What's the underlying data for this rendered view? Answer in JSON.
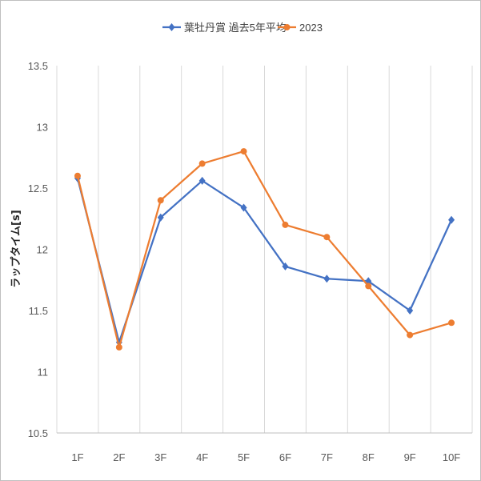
{
  "chart_data": {
    "type": "line",
    "title": "",
    "xlabel": "",
    "ylabel": "ラップタイム[s]",
    "ylim": [
      10.5,
      13.5
    ],
    "yticks": [
      "10.5",
      "11",
      "11.5",
      "12",
      "12.5",
      "13",
      "13.5"
    ],
    "categories": [
      "1F",
      "2F",
      "3F",
      "4F",
      "5F",
      "6F",
      "7F",
      "8F",
      "9F",
      "10F"
    ],
    "grid": "vertical",
    "legend_position": "top",
    "series": [
      {
        "name": "葉牡丹賞 過去5年平均",
        "color": "#4472c4",
        "marker": "diamond",
        "values": [
          12.58,
          11.24,
          12.26,
          12.56,
          12.34,
          11.86,
          11.76,
          11.74,
          11.5,
          12.24
        ]
      },
      {
        "name": "2023",
        "color": "#ed7d31",
        "marker": "circle",
        "values": [
          12.6,
          11.2,
          12.4,
          12.7,
          12.8,
          12.2,
          12.1,
          11.7,
          11.3,
          11.4
        ]
      }
    ]
  }
}
